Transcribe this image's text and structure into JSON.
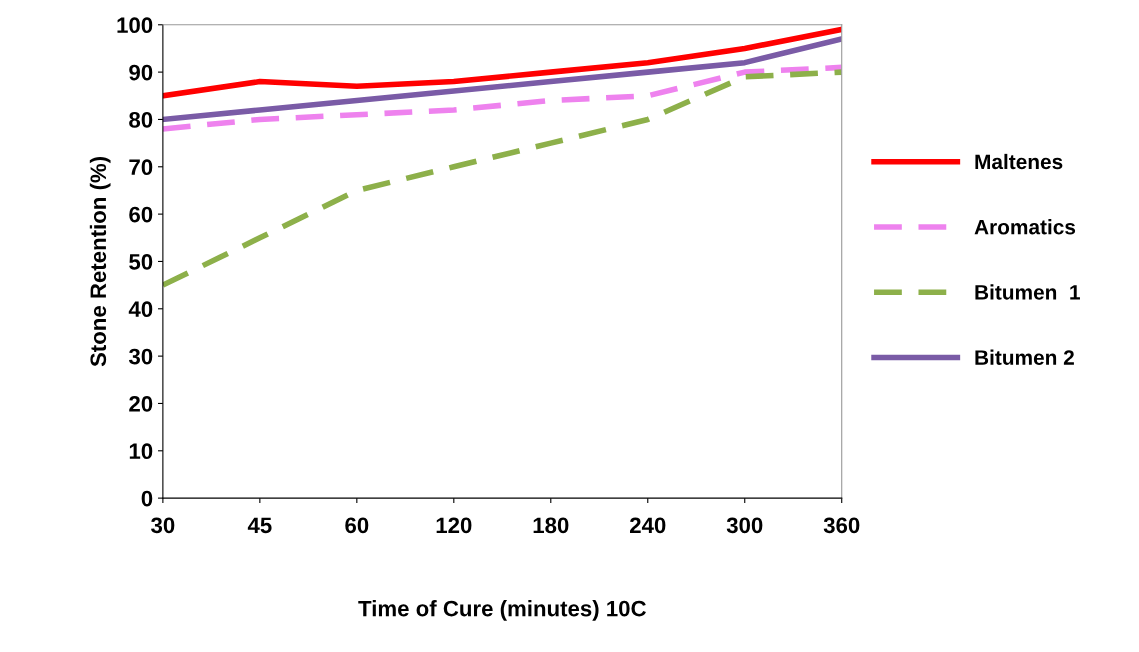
{
  "chart_data": {
    "type": "line",
    "xlabel": "Time of Cure (minutes) 10C",
    "ylabel": "Stone Retention (%)",
    "categories": [
      "30",
      "45",
      "60",
      "120",
      "180",
      "240",
      "300",
      "360"
    ],
    "series": [
      {
        "name": "Maltenes",
        "color": "#ff0000",
        "line_style": "solid",
        "values": [
          85,
          88,
          87,
          88,
          90,
          92,
          95,
          99
        ]
      },
      {
        "name": "Aromatics",
        "color": "#ee82ee",
        "line_style": "dashed",
        "values": [
          78,
          80,
          81,
          82,
          84,
          85,
          90,
          91
        ]
      },
      {
        "name": "Bitumen  1",
        "color": "#8db04a",
        "line_style": "dashed",
        "values": [
          45,
          55,
          65,
          70,
          75,
          80,
          89,
          90
        ]
      },
      {
        "name": "Bitumen 2",
        "color": "#7a5ba6",
        "line_style": "solid",
        "values": [
          80,
          82,
          84,
          86,
          88,
          90,
          92,
          97
        ]
      }
    ],
    "ylim": [
      0,
      100
    ],
    "yticks": [
      0,
      10,
      20,
      30,
      40,
      50,
      60,
      70,
      80,
      90,
      100
    ],
    "grid": false,
    "legend": "right",
    "marker": "none"
  }
}
